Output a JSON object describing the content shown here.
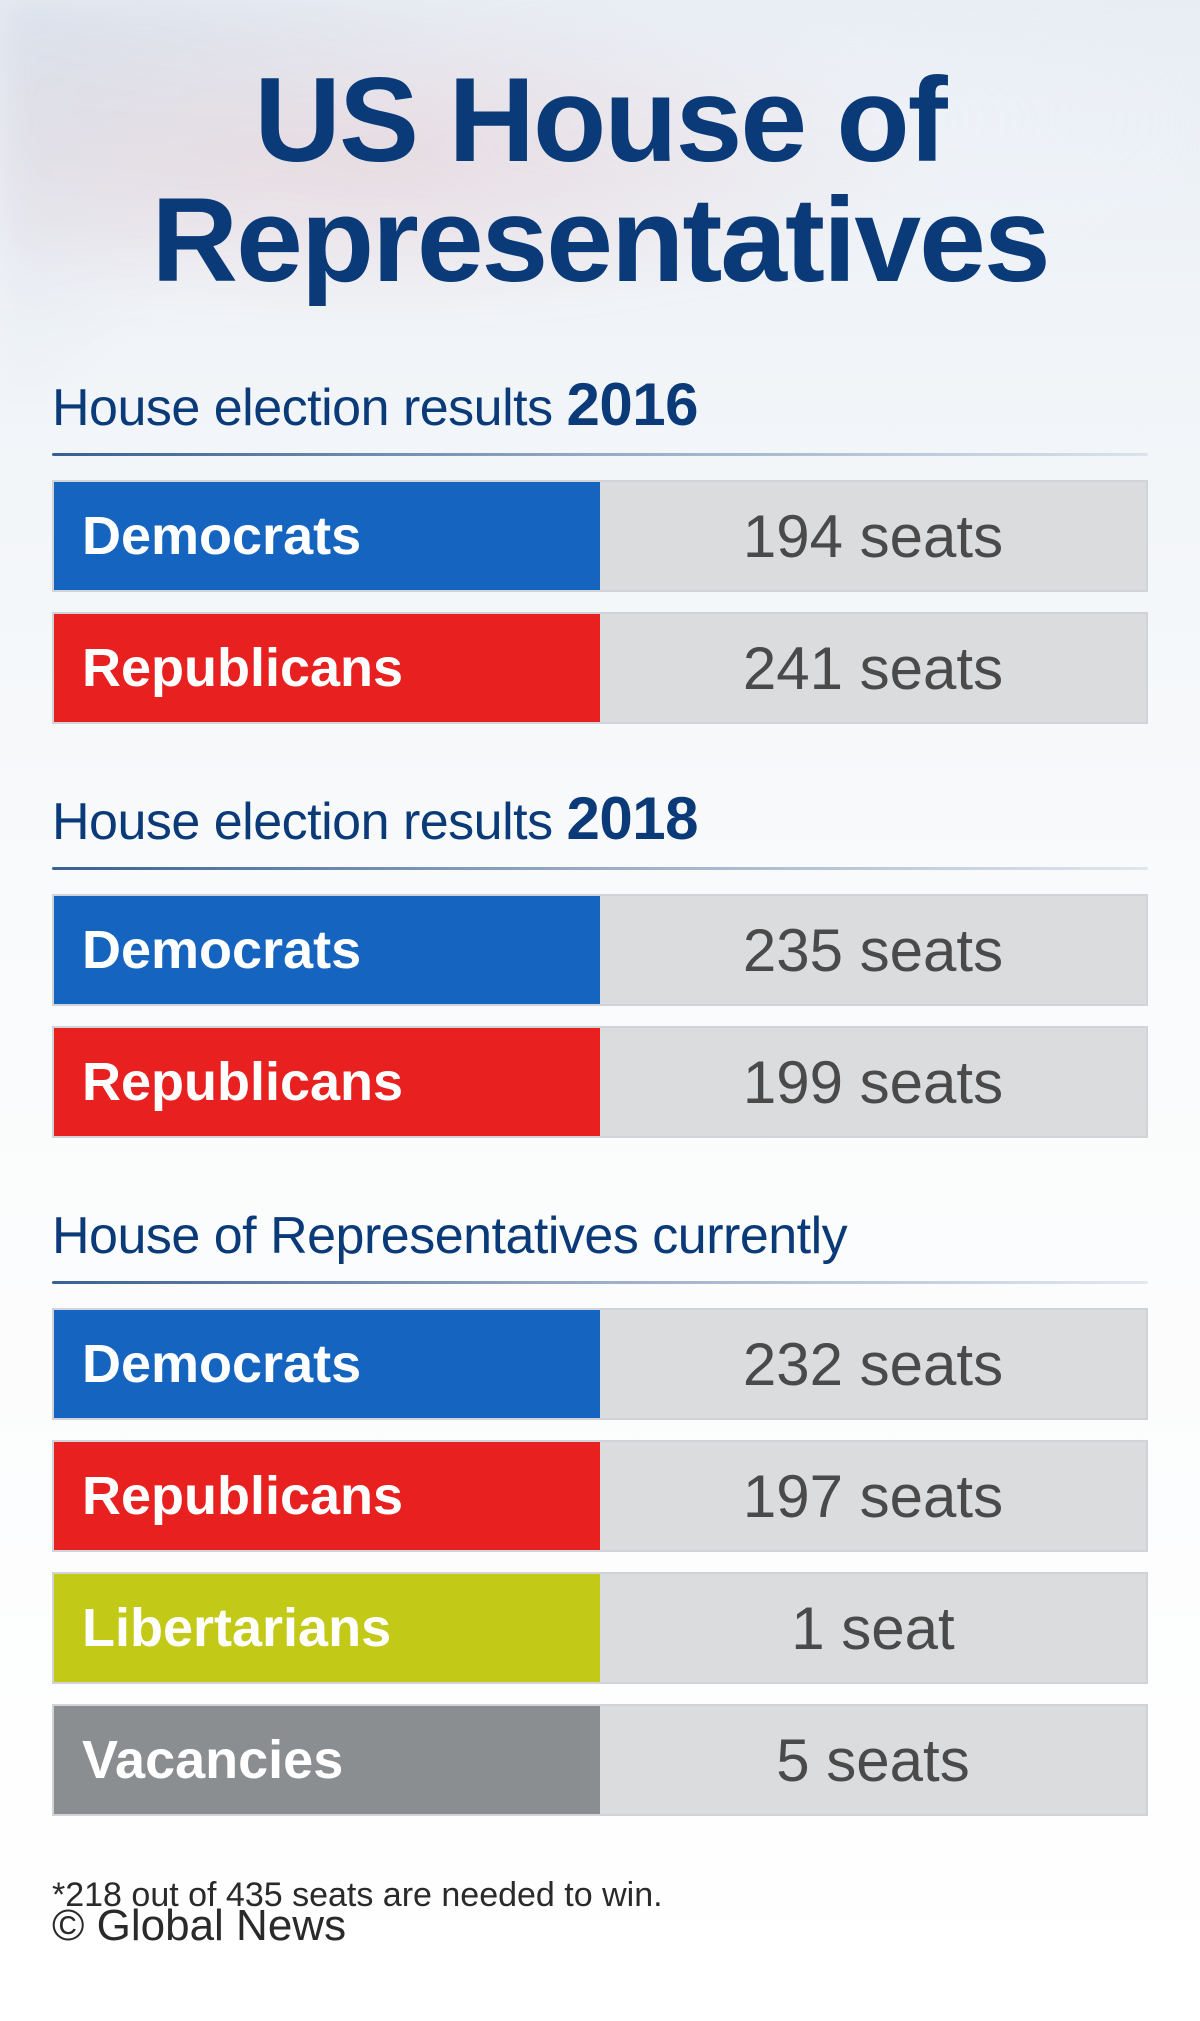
{
  "title": "US House of Representatives",
  "colors": {
    "democrats": "#1565c0",
    "republicans": "#e8201f",
    "libertarians": "#c2c916",
    "vacancies": "#8b8e91",
    "seats_bg": "#dadcde",
    "title_color": "#0a3a78",
    "text_color": "#4a4a4a"
  },
  "sections": [
    {
      "title_prefix": "House election results ",
      "year": "2016",
      "rows": [
        {
          "label": "Democrats",
          "value": "194 seats",
          "color": "#1565c0"
        },
        {
          "label": "Republicans",
          "value": "241 seats",
          "color": "#e8201f"
        }
      ]
    },
    {
      "title_prefix": "House election results ",
      "year": "2018",
      "rows": [
        {
          "label": "Democrats",
          "value": "235 seats",
          "color": "#1565c0"
        },
        {
          "label": "Republicans",
          "value": "199 seats",
          "color": "#e8201f"
        }
      ]
    },
    {
      "title_prefix": "House of Representatives currently",
      "year": "",
      "rows": [
        {
          "label": "Democrats",
          "value": "232 seats",
          "color": "#1565c0"
        },
        {
          "label": "Republicans",
          "value": "197 seats",
          "color": "#e8201f"
        },
        {
          "label": "Libertarians",
          "value": "1 seat",
          "color": "#c2c916"
        },
        {
          "label": "Vacancies",
          "value": "5 seats",
          "color": "#8b8e91"
        }
      ]
    }
  ],
  "footnote": "*218 out of 435 seats are needed to win.",
  "copyright": "© Global News"
}
